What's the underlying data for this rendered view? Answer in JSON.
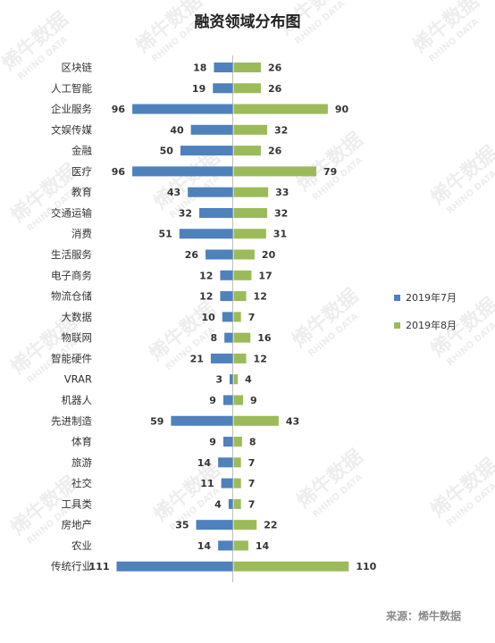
{
  "title": "融资领域分布图",
  "source": "来源：烯牛数据",
  "watermark": {
    "text": "烯牛数据",
    "subtext": "RHINO DATA"
  },
  "colors": {
    "series1": "#4f81bd",
    "series2": "#9bbb59",
    "axis": "#bfbfbf",
    "label": "#333333"
  },
  "chart_data": {
    "type": "bar",
    "orientation": "horizontal-diverging",
    "categories": [
      "区块链",
      "人工智能",
      "企业服务",
      "文娱传媒",
      "金融",
      "医疗",
      "教育",
      "交通运输",
      "消费",
      "生活服务",
      "电子商务",
      "物流仓储",
      "大数据",
      "物联网",
      "智能硬件",
      "VRAR",
      "机器人",
      "先进制造",
      "体育",
      "旅游",
      "社交",
      "工具类",
      "房地产",
      "农业",
      "传统行业"
    ],
    "series": [
      {
        "name": "2019年7月",
        "values": [
          18,
          19,
          96,
          40,
          50,
          96,
          43,
          32,
          51,
          26,
          12,
          12,
          10,
          8,
          21,
          3,
          9,
          59,
          9,
          14,
          11,
          4,
          35,
          14,
          111
        ]
      },
      {
        "name": "2019年8月",
        "values": [
          26,
          26,
          90,
          32,
          26,
          79,
          33,
          32,
          31,
          20,
          17,
          12,
          7,
          16,
          12,
          4,
          9,
          43,
          8,
          7,
          7,
          7,
          22,
          14,
          110
        ]
      }
    ],
    "grid": false,
    "legend_position": "right"
  }
}
